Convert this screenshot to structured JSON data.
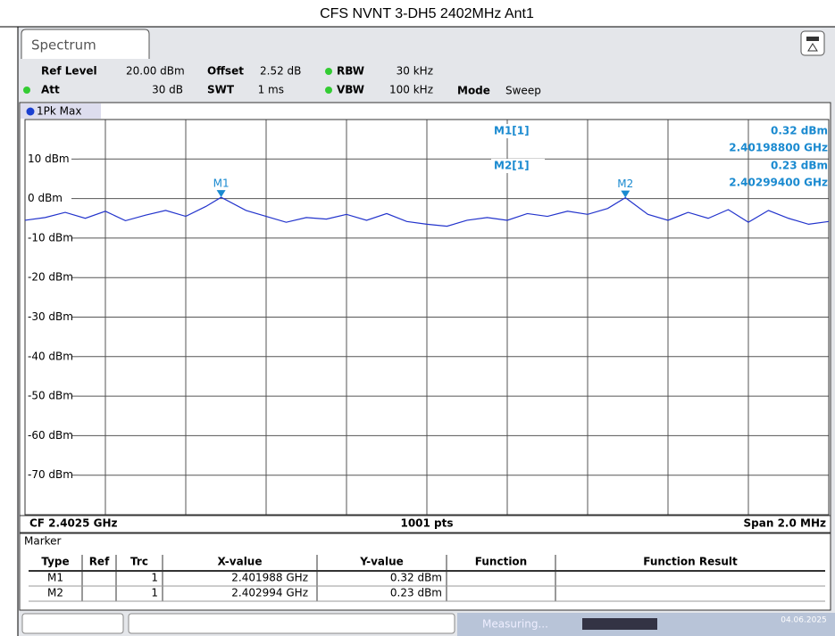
{
  "title": "CFS NVNT 3-DH5 2402MHz Ant1",
  "tab": "Spectrum",
  "settings": {
    "ref_level_label": "Ref Level",
    "ref_level": "20.00 dBm",
    "offset_label": "Offset",
    "offset": "2.52 dB",
    "rbw_label": "RBW",
    "rbw": "30 kHz",
    "att_label": "Att",
    "att": "30 dB",
    "swt_label": "SWT",
    "swt": "1 ms",
    "vbw_label": "VBW",
    "vbw": "100 kHz",
    "mode_label": "Mode",
    "mode": "Sweep"
  },
  "chart_data": {
    "type": "line",
    "trace_label": "1Pk Max",
    "x": [
      2.4015,
      2.40155,
      2.4016,
      2.40165,
      2.4017,
      2.40175,
      2.4018,
      2.40185,
      2.4019,
      2.40195,
      2.401988,
      2.40205,
      2.4021,
      2.40215,
      2.4022,
      2.40225,
      2.4023,
      2.40235,
      2.4024,
      2.40245,
      2.4025,
      2.40255,
      2.4026,
      2.40265,
      2.4027,
      2.40275,
      2.4028,
      2.40285,
      2.4029,
      2.40295,
      2.402994,
      2.40305,
      2.4031,
      2.40315,
      2.4032,
      2.40325,
      2.4033,
      2.40335,
      2.4034,
      2.40345,
      2.4035
    ],
    "series": [
      {
        "name": "1",
        "color": "#2233cc",
        "values": [
          -5.5,
          -4.8,
          -3.5,
          -5.0,
          -3.2,
          -5.6,
          -4.2,
          -3.0,
          -4.5,
          -2.0,
          0.32,
          -3.0,
          -4.5,
          -6.0,
          -4.8,
          -5.2,
          -4.0,
          -5.5,
          -3.8,
          -5.8,
          -6.5,
          -7.0,
          -5.5,
          -4.8,
          -5.5,
          -3.8,
          -4.5,
          -3.2,
          -4.0,
          -2.5,
          0.23,
          -4.0,
          -5.5,
          -3.5,
          -5.0,
          -2.8,
          -6.0,
          -3.0,
          -5.0,
          -6.5,
          -5.8
        ]
      }
    ],
    "xlim": [
      2.4015,
      2.4035
    ],
    "ylim": [
      -80,
      20
    ],
    "yticks": [
      {
        "value": 10,
        "label": "10 dBm"
      },
      {
        "value": 0,
        "label": "0 dBm"
      },
      {
        "value": -10,
        "label": "-10 dBm"
      },
      {
        "value": -20,
        "label": "-20 dBm"
      },
      {
        "value": -30,
        "label": "-30 dBm"
      },
      {
        "value": -40,
        "label": "-40 dBm"
      },
      {
        "value": -50,
        "label": "-50 dBm"
      },
      {
        "value": -60,
        "label": "-60 dBm"
      },
      {
        "value": -70,
        "label": "-70 dBm"
      }
    ],
    "grid": true,
    "markers": [
      {
        "label": "M1",
        "x": 2.401988,
        "y": 0.32
      },
      {
        "label": "M2",
        "x": 2.402994,
        "y": 0.23
      }
    ],
    "readouts": [
      {
        "name": "M1[1]",
        "level": "0.32 dBm",
        "freq": "2.40198800 GHz"
      },
      {
        "name": "M2[1]",
        "level": "0.23 dBm",
        "freq": "2.40299400 GHz"
      }
    ],
    "center": "CF 2.4025 GHz",
    "points": "1001 pts",
    "span": "Span 2.0 MHz"
  },
  "marker_table": {
    "title": "Marker",
    "columns": [
      "Type",
      "Ref",
      "Trc",
      "X-value",
      "Y-value",
      "Function",
      "Function Result"
    ],
    "rows": [
      [
        "M1",
        "",
        "1",
        "2.401988 GHz",
        "0.32 dBm",
        "",
        ""
      ],
      [
        "M2",
        "",
        "1",
        "2.402994 GHz",
        "0.23 dBm",
        "",
        ""
      ]
    ]
  },
  "status": {
    "state": "Measuring...",
    "date": "04.06.2025"
  }
}
